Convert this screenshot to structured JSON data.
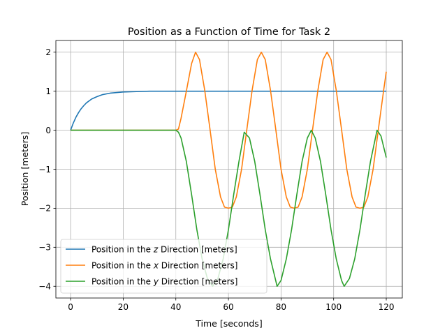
{
  "chart_data": {
    "type": "line",
    "title": "Position as a Function of Time for Task 2",
    "xlabel": "Time [seconds]",
    "ylabel": "Position [meters]",
    "xlim": [
      -5.6,
      126.1
    ],
    "ylim": [
      -4.3,
      2.3
    ],
    "xticks": [
      0,
      20,
      40,
      60,
      80,
      100,
      120
    ],
    "xtick_labels": [
      "0",
      "20",
      "40",
      "60",
      "80",
      "100",
      "120"
    ],
    "yticks": [
      -4,
      -3,
      -2,
      -1,
      0,
      1,
      2
    ],
    "ytick_labels": [
      "−4",
      "−3",
      "−2",
      "−1",
      "0",
      "1",
      "2"
    ],
    "grid": true,
    "legend_position": "lower-left",
    "series": [
      {
        "name": "Position in the z Direction [meters]",
        "legend_parts": [
          "Position in the ",
          "z",
          " Direction [meters]"
        ],
        "color": "#1f77b4",
        "x": [
          0,
          1,
          2,
          3,
          4,
          5,
          6,
          8,
          10,
          12,
          15,
          20,
          25,
          30,
          40,
          60,
          80,
          100,
          120
        ],
        "y": [
          0,
          0.18,
          0.33,
          0.45,
          0.55,
          0.63,
          0.7,
          0.8,
          0.86,
          0.91,
          0.95,
          0.98,
          0.99,
          1.0,
          1.0,
          1.0,
          1.0,
          1.0,
          1.0
        ]
      },
      {
        "name": "Position in the x Direction [meters]",
        "legend_parts": [
          "Position in the ",
          "x",
          " Direction [meters]"
        ],
        "color": "#ff7f0e",
        "x": [
          0,
          40,
          41,
          42,
          44,
          46,
          47.5,
          49,
          51,
          53,
          55,
          57,
          58.5,
          60,
          61.5,
          63,
          65,
          67,
          69,
          71,
          72.5,
          74,
          76,
          78,
          80,
          82,
          83.5,
          85,
          86.5,
          88,
          90,
          92,
          94,
          96,
          97.5,
          99,
          101,
          103,
          105,
          107,
          108.5,
          110,
          111.5,
          113,
          115,
          117,
          119,
          120
        ],
        "y": [
          0,
          0,
          0.03,
          0.31,
          1.0,
          1.71,
          2.0,
          1.81,
          1.02,
          0.02,
          -1.0,
          -1.71,
          -1.97,
          -2.0,
          -1.97,
          -1.71,
          -1.0,
          0.02,
          1.02,
          1.81,
          2.0,
          1.81,
          1.02,
          0.02,
          -1.0,
          -1.71,
          -1.97,
          -2.0,
          -1.97,
          -1.71,
          -1.0,
          0.02,
          1.02,
          1.81,
          2.0,
          1.81,
          1.02,
          0.02,
          -1.0,
          -1.71,
          -1.97,
          -2.0,
          -1.97,
          -1.71,
          -1.0,
          0.02,
          1.02,
          1.5
        ]
      },
      {
        "name": "Position in the y Direction [meters]",
        "legend_parts": [
          "Position in the ",
          "y",
          " Direction [meters]"
        ],
        "color": "#2ca02c",
        "x": [
          0,
          40,
          41,
          42,
          44,
          46,
          48,
          50,
          52,
          54,
          56,
          58,
          60,
          62,
          64,
          66,
          68,
          70,
          72,
          74,
          76,
          78.5,
          80,
          82,
          84,
          86,
          88,
          90,
          91.5,
          93,
          95,
          97,
          99,
          101,
          103,
          104,
          106,
          108,
          110,
          112,
          114,
          116.5,
          118,
          120
        ],
        "y": [
          0,
          0,
          -0.05,
          -0.2,
          -0.8,
          -1.65,
          -2.55,
          -3.3,
          -3.8,
          -4.0,
          -3.8,
          -3.3,
          -2.55,
          -1.65,
          -0.8,
          -0.05,
          -0.2,
          -0.8,
          -1.65,
          -2.55,
          -3.3,
          -4.0,
          -3.85,
          -3.3,
          -2.55,
          -1.65,
          -0.8,
          -0.2,
          0.0,
          -0.2,
          -0.8,
          -1.65,
          -2.55,
          -3.3,
          -3.85,
          -4.0,
          -3.8,
          -3.3,
          -2.55,
          -1.65,
          -0.8,
          0.0,
          -0.15,
          -0.7
        ]
      }
    ]
  }
}
